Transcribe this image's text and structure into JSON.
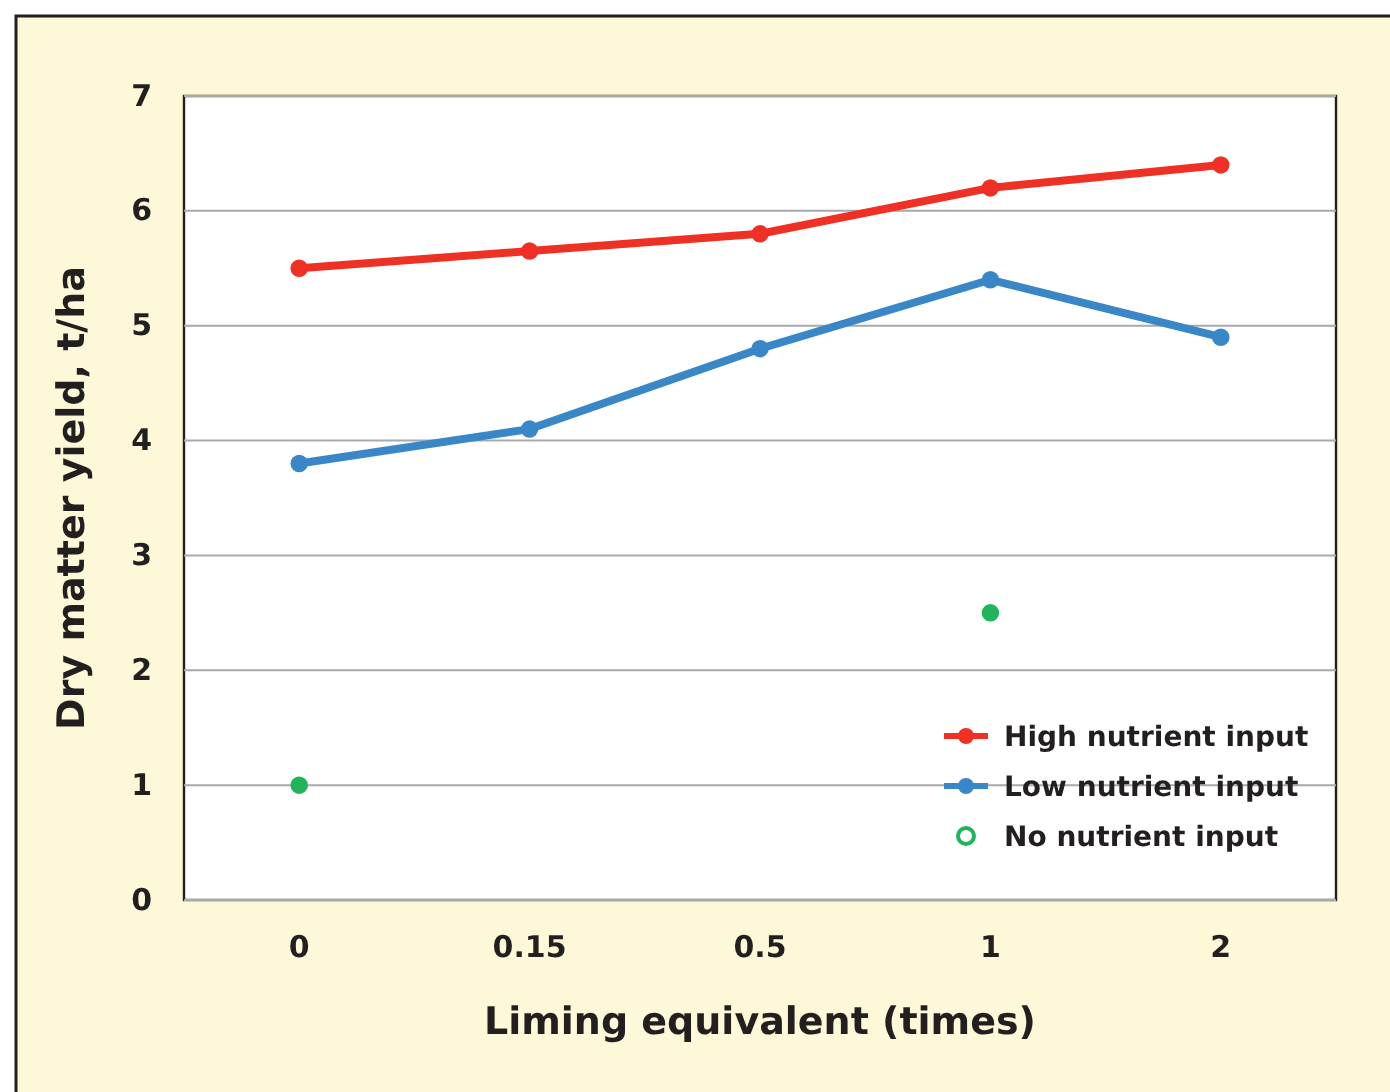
{
  "chart_data": {
    "type": "line",
    "xlabel": "Liming equivalent (times)",
    "ylabel": "Dry matter yield, t/ha",
    "categories": [
      "0",
      "0.15",
      "0.5",
      "1",
      "2"
    ],
    "ylim": [
      0,
      7
    ],
    "yticks": [
      0,
      1,
      2,
      3,
      4,
      5,
      6,
      7
    ],
    "grid": "y",
    "legend": "bottom right",
    "marker": "circle",
    "series": [
      {
        "name": "High nutrient input",
        "color": "#ee3124",
        "values": [
          5.5,
          5.65,
          5.8,
          6.2,
          6.4
        ]
      },
      {
        "name": "Low nutrient input",
        "color": "#3a87c8",
        "values": [
          3.8,
          4.1,
          4.8,
          5.4,
          4.9
        ]
      },
      {
        "name": "No nutrient input",
        "type": "scatter",
        "color": "#22b459",
        "values": [
          1,
          null,
          null,
          2.5,
          null
        ]
      }
    ]
  }
}
